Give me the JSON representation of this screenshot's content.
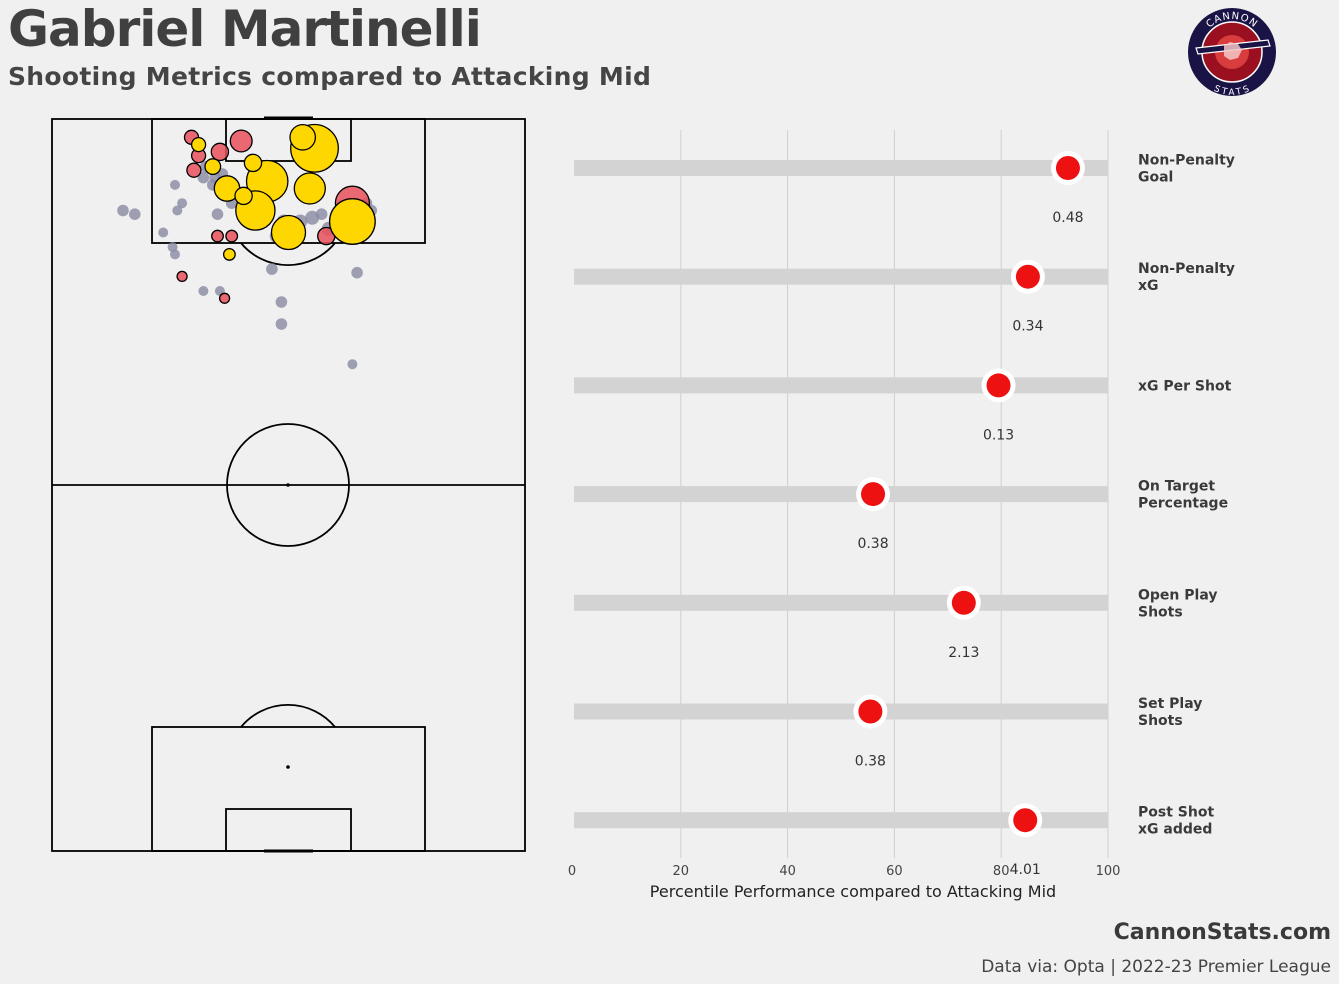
{
  "header": {
    "title": "Gabriel Martinelli",
    "subtitle": "Shooting Metrics compared to Attacking Mid"
  },
  "logo": {
    "top_text": "CANNON",
    "bottom_text": "STATS",
    "colors": {
      "ring": "#1a1446",
      "inner": "#9b1020",
      "center": "#d93c3c"
    }
  },
  "footer": {
    "site": "CannonStats.com",
    "source": "Data via: Opta | 2022-23 Premier League"
  },
  "colors": {
    "background": "#f0f0f0",
    "track": "#d3d3d3",
    "marker": "#ee1111",
    "goal": "#ffd700",
    "on_target": "#e8505b",
    "off_target": "#8a8aa3",
    "pitch_line": "#000000"
  },
  "chart_data": [
    {
      "type": "scatter",
      "series": [
        {
          "name": "Goal",
          "color": "#ffd700",
          "points": [
            {
              "x": 55.5,
              "y": 96,
              "xg": 0.55
            },
            {
              "x": 45.5,
              "y": 91.5,
              "xg": 0.4
            },
            {
              "x": 63.5,
              "y": 86,
              "xg": 0.5
            },
            {
              "x": 43,
              "y": 87.5,
              "xg": 0.35
            },
            {
              "x": 50,
              "y": 84.5,
              "xg": 0.25
            },
            {
              "x": 37,
              "y": 90.5,
              "xg": 0.12
            },
            {
              "x": 34,
              "y": 93.5,
              "xg": 0.03
            },
            {
              "x": 31,
              "y": 96.5,
              "xg": 0.02
            },
            {
              "x": 40.5,
              "y": 89.5,
              "xg": 0.04
            },
            {
              "x": 54.5,
              "y": 90.5,
              "xg": 0.2
            },
            {
              "x": 42.5,
              "y": 94,
              "xg": 0.04
            },
            {
              "x": 53,
              "y": 97.5,
              "xg": 0.12
            },
            {
              "x": 37.5,
              "y": 81.5,
              "xg": 0.01
            }
          ]
        },
        {
          "name": "On Target",
          "color": "#e8505b",
          "points": [
            {
              "x": 40,
              "y": 97,
              "xg": 0.08
            },
            {
              "x": 35.5,
              "y": 95.5,
              "xg": 0.04
            },
            {
              "x": 63.5,
              "y": 88.5,
              "xg": 0.25
            },
            {
              "x": 58,
              "y": 84,
              "xg": 0.04
            },
            {
              "x": 44.5,
              "y": 86.5,
              "xg": 0.03
            },
            {
              "x": 30,
              "y": 93,
              "xg": 0.02
            },
            {
              "x": 31,
              "y": 95,
              "xg": 0.02
            },
            {
              "x": 29.5,
              "y": 97.5,
              "xg": 0.02
            },
            {
              "x": 35,
              "y": 84,
              "xg": 0.01
            },
            {
              "x": 38,
              "y": 84,
              "xg": 0.01
            },
            {
              "x": 27.5,
              "y": 78.5,
              "xg": 0.005
            },
            {
              "x": 36.5,
              "y": 75.5,
              "xg": 0.005
            }
          ]
        },
        {
          "name": "Off Target",
          "color": "#8a8aa3",
          "points": [
            {
              "x": 15,
              "y": 87.5,
              "xg": 0.01
            },
            {
              "x": 17.5,
              "y": 87,
              "xg": 0.01
            },
            {
              "x": 26.5,
              "y": 87.5,
              "xg": 0.005
            },
            {
              "x": 27.5,
              "y": 88.5,
              "xg": 0.005
            },
            {
              "x": 26,
              "y": 91,
              "xg": 0.005
            },
            {
              "x": 32,
              "y": 92,
              "xg": 0.01
            },
            {
              "x": 34,
              "y": 91,
              "xg": 0.01
            },
            {
              "x": 36,
              "y": 92.5,
              "xg": 0.01
            },
            {
              "x": 38,
              "y": 88.5,
              "xg": 0.01
            },
            {
              "x": 40,
              "y": 87.5,
              "xg": 0.01
            },
            {
              "x": 49,
              "y": 86,
              "xg": 0.02
            },
            {
              "x": 50.5,
              "y": 85,
              "xg": 0.02
            },
            {
              "x": 52.5,
              "y": 86,
              "xg": 0.02
            },
            {
              "x": 55,
              "y": 86.5,
              "xg": 0.02
            },
            {
              "x": 57,
              "y": 87,
              "xg": 0.01
            },
            {
              "x": 58.5,
              "y": 85,
              "xg": 0.02
            },
            {
              "x": 66.5,
              "y": 88.5,
              "xg": 0.01
            },
            {
              "x": 67.5,
              "y": 87.5,
              "xg": 0.01
            },
            {
              "x": 65,
              "y": 85,
              "xg": 0.005
            },
            {
              "x": 47.5,
              "y": 84,
              "xg": 0.02
            },
            {
              "x": 46.5,
              "y": 79.5,
              "xg": 0.01
            },
            {
              "x": 23.5,
              "y": 84.5,
              "xg": 0.005
            },
            {
              "x": 25.5,
              "y": 82.5,
              "xg": 0.005
            },
            {
              "x": 26,
              "y": 81.5,
              "xg": 0.005
            },
            {
              "x": 32,
              "y": 76.5,
              "xg": 0.005
            },
            {
              "x": 35.5,
              "y": 76.5,
              "xg": 0.005
            },
            {
              "x": 48.5,
              "y": 75,
              "xg": 0.01
            },
            {
              "x": 48.5,
              "y": 72,
              "xg": 0.01
            },
            {
              "x": 64.5,
              "y": 79,
              "xg": 0.01
            },
            {
              "x": 63.5,
              "y": 66.5,
              "xg": 0.005
            },
            {
              "x": 34.5,
              "y": 92,
              "xg": 0.01
            },
            {
              "x": 32.5,
              "y": 93.5,
              "xg": 0.01
            },
            {
              "x": 35,
              "y": 87,
              "xg": 0.01
            }
          ]
        }
      ]
    },
    {
      "type": "bar",
      "xlabel": "Percentile Performance compared to Attacking Mid",
      "xlim": [
        0,
        100
      ],
      "xticks": [
        0,
        20,
        40,
        60,
        80,
        100
      ],
      "metrics": [
        {
          "label_lines": [
            "Non-Penalty",
            "Goal"
          ],
          "percentile": 92.5,
          "value": "0.48"
        },
        {
          "label_lines": [
            "Non-Penalty",
            "xG"
          ],
          "percentile": 85,
          "value": "0.34"
        },
        {
          "label_lines": [
            "xG Per Shot"
          ],
          "percentile": 79.5,
          "value": "0.13"
        },
        {
          "label_lines": [
            "On Target",
            "Percentage"
          ],
          "percentile": 56,
          "value": "0.38"
        },
        {
          "label_lines": [
            "Open Play",
            "Shots"
          ],
          "percentile": 73,
          "value": "2.13"
        },
        {
          "label_lines": [
            "Set Play",
            "Shots"
          ],
          "percentile": 55.5,
          "value": "0.38"
        },
        {
          "label_lines": [
            "Post Shot",
            "xG added"
          ],
          "percentile": 84.5,
          "value": "4.01"
        }
      ]
    }
  ]
}
